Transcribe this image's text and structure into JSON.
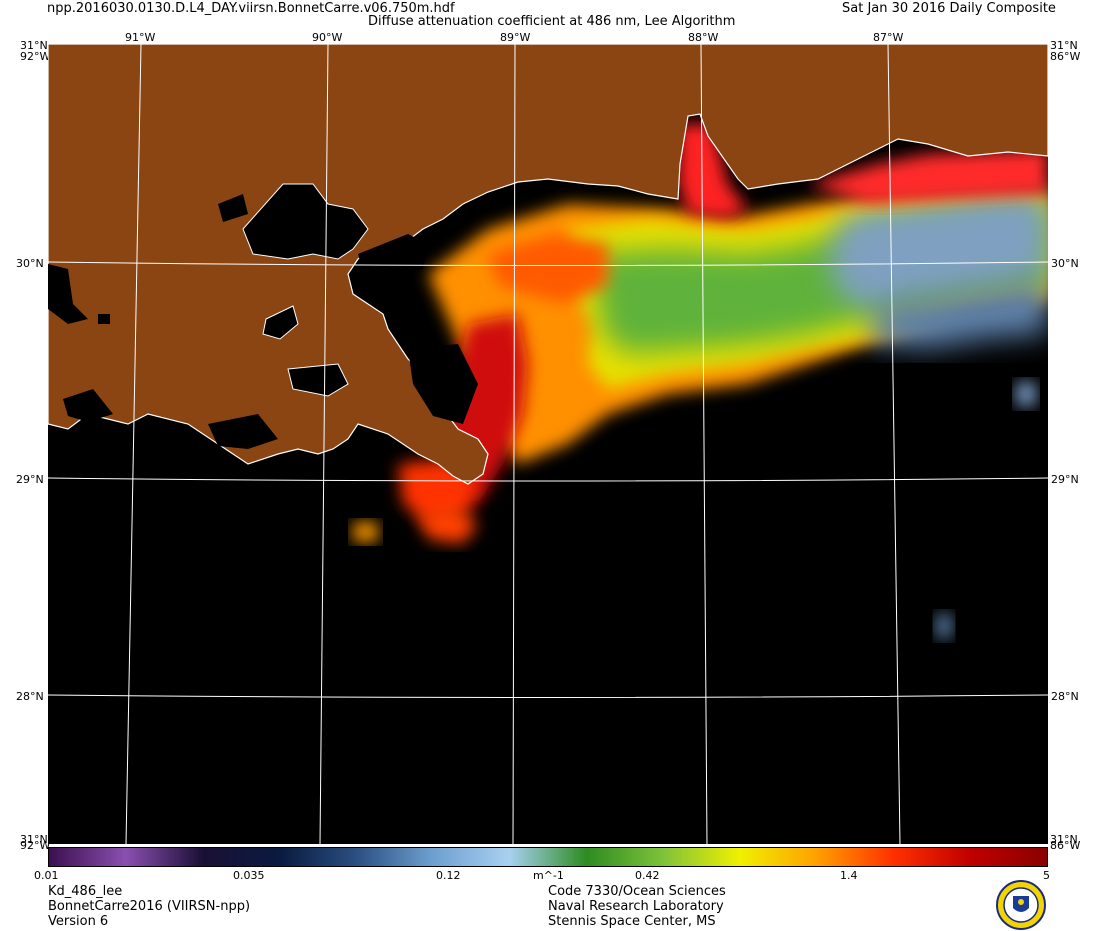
{
  "header": {
    "filename": "npp.2016030.0130.D.L4_DAY.viirsn.BonnetCarre.v06.750m.hdf",
    "title": "Diffuse attenuation coefficient at 486 nm, Lee Algorithm",
    "date": "Sat Jan 30 2016 Daily Composite"
  },
  "map": {
    "lon_ticks": [
      "91°W",
      "90°W",
      "89°W",
      "88°W",
      "87°W"
    ],
    "corner_lat_top": "31°N",
    "corner_lat_bottom": "31°N",
    "corner_lon_top": "92°W",
    "corner_lon_bottom": "86°W",
    "lat_ticks_left": [
      "30°N",
      "29°N",
      "28°N"
    ],
    "lat_ticks_right": [
      "30°N",
      "29°N",
      "28°N"
    ],
    "colors": {
      "land": "#8b4513",
      "no_data": "#000000",
      "graticule": "#ffffff",
      "coastline": "#ffffff"
    }
  },
  "colorbar": {
    "scale": "log",
    "range": [
      0.01,
      5
    ],
    "tick_labels": [
      "0.01",
      "0.035",
      "0.12",
      "0.42",
      "1.4",
      "5"
    ],
    "unit": "m^-1",
    "stops": [
      "#3b0f4f",
      "#8a4fb0",
      "#1b1035",
      "#0a1a40",
      "#2a4f80",
      "#6f9fd0",
      "#a8d0f0",
      "#2e8b22",
      "#7fc23a",
      "#f0f000",
      "#ffa000",
      "#ff3000",
      "#c00000",
      "#8a0000"
    ]
  },
  "footer": {
    "left": [
      "Kd_486_lee",
      "BonnetCarre2016 (VIIRSN-npp)",
      "Version 6"
    ],
    "right": [
      "Code 7330/Ocean Sciences",
      "Naval Research Laboratory",
      "Stennis Space Center, MS"
    ]
  }
}
